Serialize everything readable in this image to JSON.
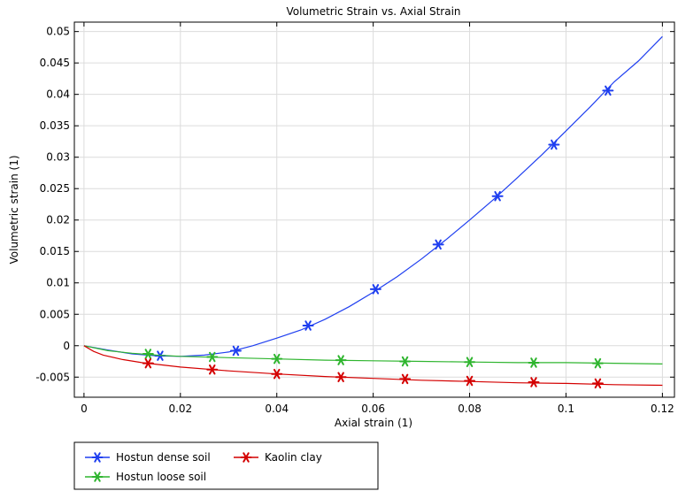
{
  "chart_data": {
    "type": "line",
    "title": "Volumetric Strain vs. Axial Strain",
    "xlabel": "Axial strain (1)",
    "ylabel": "Volumetric strain (1)",
    "xlim": [
      -0.002,
      0.1225
    ],
    "ylim": [
      -0.0082,
      0.0515
    ],
    "xticks": [
      0,
      0.02,
      0.04,
      0.06,
      0.08,
      0.1,
      0.12
    ],
    "xtick_labels": [
      "0",
      "0.02",
      "0.04",
      "0.06",
      "0.08",
      "0.1",
      "0.12"
    ],
    "yticks": [
      -0.005,
      0,
      0.005,
      0.01,
      0.015,
      0.02,
      0.025,
      0.03,
      0.035,
      0.04,
      0.045,
      0.05
    ],
    "ytick_labels": [
      "-0.005",
      "0",
      "0.005",
      "0.01",
      "0.015",
      "0.02",
      "0.025",
      "0.03",
      "0.035",
      "0.04",
      "0.045",
      "0.05"
    ],
    "grid": true,
    "legend_position": "below-left",
    "series": [
      {
        "name": "Hostun dense soil",
        "color": "#1f3ff0",
        "marker": "asterisk",
        "x": [
          0,
          0.005,
          0.01,
          0.015,
          0.02,
          0.025,
          0.03,
          0.035,
          0.04,
          0.045,
          0.05,
          0.055,
          0.06,
          0.065,
          0.07,
          0.075,
          0.08,
          0.085,
          0.09,
          0.095,
          0.1,
          0.105,
          0.11,
          0.115,
          0.12
        ],
        "y": [
          0,
          -0.0007,
          -0.0013,
          -0.0016,
          -0.0017,
          -0.0015,
          -0.001,
          0.0,
          0.0012,
          0.0025,
          0.0042,
          0.0062,
          0.0085,
          0.011,
          0.0138,
          0.0168,
          0.02,
          0.0233,
          0.0268,
          0.0304,
          0.0342,
          0.038,
          0.042,
          0.0453,
          0.0492
        ],
        "marker_x": [
          0.0158,
          0.0315,
          0.0465,
          0.0605,
          0.0735,
          0.0858,
          0.0975,
          0.1087
        ],
        "marker_y": [
          -0.0016,
          -0.0008,
          0.0032,
          0.009,
          0.0161,
          0.0238,
          0.032,
          0.0406
        ]
      },
      {
        "name": "Hostun loose soil",
        "color": "#2fb52f",
        "marker": "asterisk",
        "x": [
          0,
          0.005,
          0.01,
          0.015,
          0.02,
          0.03,
          0.04,
          0.05,
          0.06,
          0.07,
          0.08,
          0.09,
          0.1,
          0.11,
          0.12
        ],
        "y": [
          0,
          -0.0008,
          -0.0012,
          -0.0015,
          -0.0017,
          -0.0019,
          -0.0021,
          -0.0023,
          -0.0024,
          -0.0025,
          -0.0026,
          -0.0027,
          -0.0027,
          -0.0028,
          -0.0029
        ],
        "marker_x": [
          0.0133,
          0.0266,
          0.04,
          0.0533,
          0.0666,
          0.08,
          0.0933,
          0.1066
        ],
        "marker_y": [
          -0.0013,
          -0.0018,
          -0.0021,
          -0.0023,
          -0.0025,
          -0.0026,
          -0.0027,
          -0.0028
        ]
      },
      {
        "name": "Kaolin clay",
        "color": "#d40000",
        "marker": "asterisk",
        "x": [
          0,
          0.002,
          0.004,
          0.008,
          0.012,
          0.02,
          0.03,
          0.04,
          0.05,
          0.06,
          0.07,
          0.08,
          0.09,
          0.1,
          0.11,
          0.12
        ],
        "y": [
          0,
          -0.0009,
          -0.0015,
          -0.0022,
          -0.0027,
          -0.0034,
          -0.004,
          -0.0045,
          -0.0049,
          -0.0052,
          -0.0055,
          -0.0057,
          -0.0059,
          -0.006,
          -0.0062,
          -0.0063
        ],
        "marker_x": [
          0.0133,
          0.0266,
          0.04,
          0.0533,
          0.0666,
          0.08,
          0.0933,
          0.1066
        ],
        "marker_y": [
          -0.0028,
          -0.0038,
          -0.0045,
          -0.005,
          -0.0053,
          -0.0056,
          -0.0058,
          -0.006
        ]
      }
    ]
  }
}
